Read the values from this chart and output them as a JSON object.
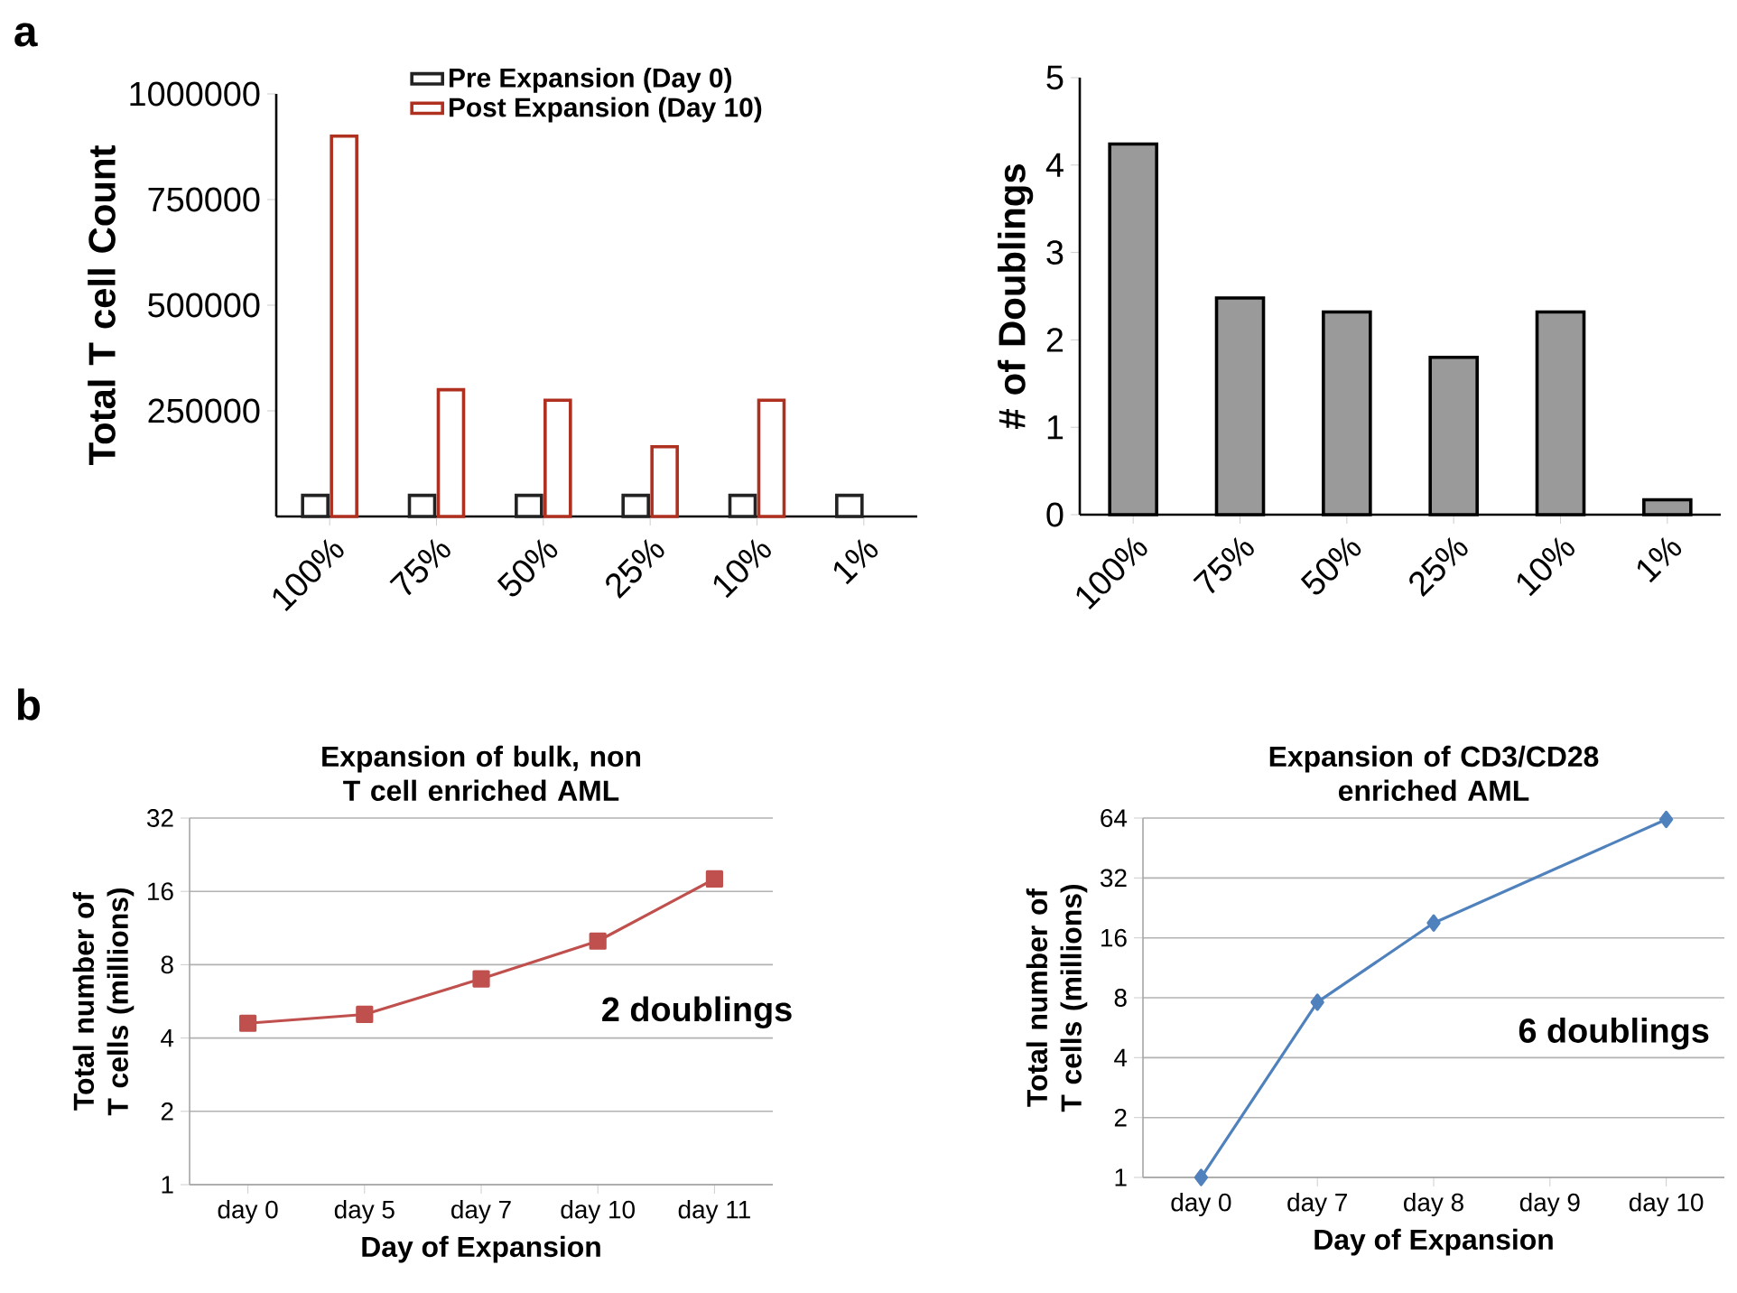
{
  "chart_data": [
    {
      "type": "bar",
      "ylabel": "Total T cell Count",
      "categories": [
        "100%",
        "75%",
        "50%",
        "25%",
        "10%",
        "1%"
      ],
      "series": [
        {
          "name": "Pre Expansion  (Day 0)",
          "color": "#222222",
          "values": [
            50000,
            50000,
            50000,
            50000,
            50000,
            50000
          ]
        },
        {
          "name": "Post Expansion  (Day 10)",
          "color": "#b03020",
          "values": [
            900000,
            300000,
            275000,
            165000,
            275000,
            null
          ]
        }
      ],
      "ylim": [
        0,
        1000000
      ],
      "yticks": [
        250000,
        500000,
        750000,
        1000000
      ],
      "legend": "top",
      "annotations": [
        "a"
      ]
    },
    {
      "type": "bar",
      "ylabel": "# of Doublings",
      "categories": [
        "100%",
        "75%",
        "50%",
        "25%",
        "10%",
        "1%"
      ],
      "values": [
        4.24,
        2.48,
        2.32,
        1.8,
        2.32,
        0.17
      ],
      "color": "#9a9a9a",
      "ylim": [
        0,
        5
      ],
      "yticks": [
        0,
        1,
        2,
        3,
        4,
        5
      ]
    },
    {
      "type": "line",
      "title": "Expansion of bulk, non T cell enriched AML",
      "xlabel": "Day of Expansion",
      "ylabel": "Total number of T cells (millions)",
      "categories": [
        "day 0",
        "day 5",
        "day 7",
        "day 10",
        "day 11"
      ],
      "values": [
        4.6,
        5,
        7,
        10,
        18
      ],
      "color": "#c0504d",
      "marker": "square",
      "log": true,
      "ylim": [
        1,
        32
      ],
      "yticks": [
        1,
        2,
        4,
        8,
        16,
        32
      ],
      "grid": "y",
      "annotations": [
        "b",
        "2 doublings"
      ]
    },
    {
      "type": "line",
      "title": "Expansion of CD3/CD28 enriched AML",
      "xlabel": "Day of Expansion",
      "ylabel": "Total number of T cells (millions)",
      "categories": [
        "day 0",
        "day 7",
        "day 8",
        "day 9",
        "day 10"
      ],
      "values": [
        1,
        7.6,
        19,
        null,
        63
      ],
      "color": "#4f81bd",
      "marker": "diamond",
      "log": true,
      "ylim": [
        1,
        64
      ],
      "yticks": [
        1,
        2,
        4,
        8,
        16,
        32,
        64
      ],
      "grid": "y",
      "annotations": [
        "6 doublings"
      ]
    }
  ]
}
